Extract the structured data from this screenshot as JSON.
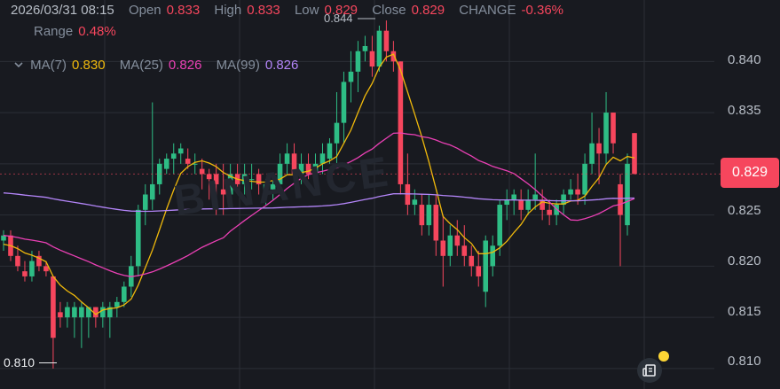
{
  "header": {
    "date": "2026/03/31 08:15",
    "open_label": "Open",
    "open_value": "0.833",
    "high_label": "High",
    "high_value": "0.833",
    "low_label": "Low",
    "low_value": "0.829",
    "close_label": "Close",
    "close_value": "0.829",
    "change_label": "CHANGE",
    "change_value": "-0.36%",
    "range_label": "Range",
    "range_value": "0.48%"
  },
  "indicators": {
    "ma7_label": "MA(7)",
    "ma7_value": "0.830",
    "ma25_label": "MA(25)",
    "ma25_value": "0.826",
    "ma99_label": "MA(99)",
    "ma99_value": "0.826"
  },
  "y_axis": [
    "0.840",
    "0.835",
    "0.825",
    "0.820",
    "0.815",
    "0.810"
  ],
  "current_price": "0.829",
  "high_marker": "0.844",
  "low_marker": "0.810",
  "watermark": "BINANCE",
  "colors": {
    "up": "#2EBD85",
    "down": "#F6465D",
    "ma7": "#F0B90B",
    "ma25": "#EB40B5",
    "ma99": "#B385F8",
    "grid": "#2B2F36",
    "background": "#181A20"
  },
  "chart_data": {
    "type": "candlestick",
    "price_range": [
      0.808,
      0.846
    ],
    "candles": [
      [
        0.8225,
        0.8235,
        0.8215,
        0.823
      ],
      [
        0.823,
        0.8235,
        0.8205,
        0.821
      ],
      [
        0.821,
        0.822,
        0.8195,
        0.82
      ],
      [
        0.8195,
        0.8205,
        0.8185,
        0.819
      ],
      [
        0.819,
        0.8215,
        0.8185,
        0.8205
      ],
      [
        0.821,
        0.8215,
        0.8195,
        0.82
      ],
      [
        0.82,
        0.8205,
        0.819,
        0.8195
      ],
      [
        0.819,
        0.819,
        0.81,
        0.813
      ],
      [
        0.8155,
        0.8165,
        0.814,
        0.815
      ],
      [
        0.815,
        0.8165,
        0.814,
        0.816
      ],
      [
        0.815,
        0.8165,
        0.813,
        0.816
      ],
      [
        0.815,
        0.8165,
        0.812,
        0.816
      ],
      [
        0.815,
        0.816,
        0.813,
        0.816
      ],
      [
        0.816,
        0.816,
        0.814,
        0.815
      ],
      [
        0.815,
        0.8165,
        0.814,
        0.816
      ],
      [
        0.815,
        0.8165,
        0.813,
        0.816
      ],
      [
        0.816,
        0.817,
        0.815,
        0.8165
      ],
      [
        0.8165,
        0.8185,
        0.816,
        0.818
      ],
      [
        0.818,
        0.821,
        0.817,
        0.82
      ],
      [
        0.82,
        0.826,
        0.819,
        0.8255
      ],
      [
        0.8255,
        0.828,
        0.824,
        0.827
      ],
      [
        0.8265,
        0.836,
        0.8255,
        0.828
      ],
      [
        0.828,
        0.8305,
        0.827,
        0.83
      ],
      [
        0.8295,
        0.831,
        0.829,
        0.8305
      ],
      [
        0.8305,
        0.832,
        0.829,
        0.831
      ],
      [
        0.831,
        0.832,
        0.83,
        0.8315
      ],
      [
        0.8305,
        0.8315,
        0.8295,
        0.83
      ],
      [
        0.83,
        0.831,
        0.829,
        0.83
      ],
      [
        0.8295,
        0.8305,
        0.8275,
        0.829
      ],
      [
        0.829,
        0.8295,
        0.8265,
        0.8285
      ],
      [
        0.829,
        0.83,
        0.825,
        0.828
      ],
      [
        0.8275,
        0.83,
        0.825,
        0.827
      ],
      [
        0.827,
        0.83,
        0.826,
        0.829
      ],
      [
        0.829,
        0.83,
        0.8275,
        0.828
      ],
      [
        0.828,
        0.83,
        0.827,
        0.829
      ],
      [
        0.8285,
        0.83,
        0.8275,
        0.8285
      ],
      [
        0.829,
        0.8295,
        0.827,
        0.828
      ],
      [
        0.827,
        0.8285,
        0.826,
        0.828
      ],
      [
        0.8275,
        0.829,
        0.8265,
        0.828
      ],
      [
        0.828,
        0.831,
        0.827,
        0.83
      ],
      [
        0.83,
        0.832,
        0.829,
        0.831
      ],
      [
        0.831,
        0.832,
        0.828,
        0.829
      ],
      [
        0.829,
        0.831,
        0.828,
        0.83
      ],
      [
        0.83,
        0.831,
        0.8285,
        0.829
      ],
      [
        0.829,
        0.831,
        0.8285,
        0.83
      ],
      [
        0.83,
        0.832,
        0.829,
        0.831
      ],
      [
        0.8305,
        0.8325,
        0.83,
        0.832
      ],
      [
        0.832,
        0.837,
        0.83,
        0.834
      ],
      [
        0.834,
        0.839,
        0.832,
        0.838
      ],
      [
        0.838,
        0.841,
        0.836,
        0.839
      ],
      [
        0.839,
        0.842,
        0.837,
        0.841
      ],
      [
        0.841,
        0.8425,
        0.84,
        0.8415
      ],
      [
        0.841,
        0.8425,
        0.8385,
        0.8395
      ],
      [
        0.8395,
        0.8435,
        0.839,
        0.843
      ],
      [
        0.843,
        0.844,
        0.84,
        0.841
      ],
      [
        0.841,
        0.842,
        0.839,
        0.84
      ],
      [
        0.84,
        0.84,
        0.827,
        0.828
      ],
      [
        0.828,
        0.831,
        0.825,
        0.826
      ],
      [
        0.826,
        0.8275,
        0.825,
        0.8265
      ],
      [
        0.826,
        0.827,
        0.823,
        0.824
      ],
      [
        0.824,
        0.827,
        0.823,
        0.826
      ],
      [
        0.826,
        0.827,
        0.821,
        0.8225
      ],
      [
        0.8225,
        0.825,
        0.818,
        0.821
      ],
      [
        0.821,
        0.824,
        0.82,
        0.823
      ],
      [
        0.823,
        0.8245,
        0.821,
        0.822
      ],
      [
        0.822,
        0.824,
        0.82,
        0.821
      ],
      [
        0.821,
        0.822,
        0.819,
        0.82
      ],
      [
        0.82,
        0.8215,
        0.818,
        0.819
      ],
      [
        0.8175,
        0.823,
        0.816,
        0.8225
      ],
      [
        0.82,
        0.823,
        0.819,
        0.822
      ],
      [
        0.822,
        0.8265,
        0.821,
        0.826
      ],
      [
        0.826,
        0.8275,
        0.8245,
        0.8265
      ],
      [
        0.8265,
        0.8275,
        0.825,
        0.827
      ],
      [
        0.8265,
        0.8275,
        0.8245,
        0.8255
      ],
      [
        0.8255,
        0.8275,
        0.825,
        0.8265
      ],
      [
        0.8265,
        0.831,
        0.8255,
        0.827
      ],
      [
        0.8265,
        0.8275,
        0.8245,
        0.8255
      ],
      [
        0.8255,
        0.8265,
        0.824,
        0.825
      ],
      [
        0.825,
        0.8265,
        0.824,
        0.826
      ],
      [
        0.826,
        0.8275,
        0.825,
        0.827
      ],
      [
        0.827,
        0.8285,
        0.8265,
        0.8275
      ],
      [
        0.8275,
        0.829,
        0.826,
        0.827
      ],
      [
        0.827,
        0.831,
        0.826,
        0.83
      ],
      [
        0.83,
        0.835,
        0.829,
        0.832
      ],
      [
        0.832,
        0.8335,
        0.828,
        0.831
      ],
      [
        0.831,
        0.837,
        0.83,
        0.835
      ],
      [
        0.835,
        0.835,
        0.831,
        0.832
      ],
      [
        0.828,
        0.829,
        0.82,
        0.825
      ],
      [
        0.824,
        0.831,
        0.823,
        0.83
      ],
      [
        0.833,
        0.833,
        0.829,
        0.829
      ]
    ]
  }
}
